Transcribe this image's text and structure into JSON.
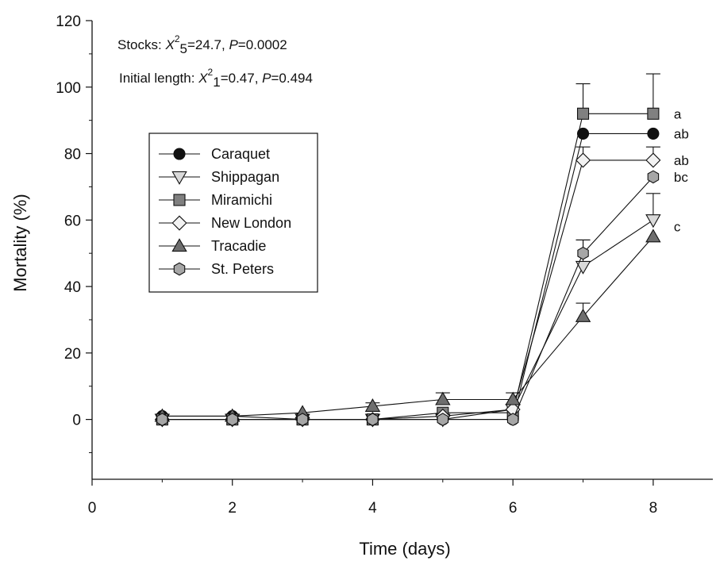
{
  "chart_data": {
    "type": "line",
    "xlabel": "Time (days)",
    "ylabel": "Mortality (%)",
    "xlim": [
      0,
      8.85
    ],
    "ylim": [
      -18,
      120
    ],
    "xticks": [
      0,
      2,
      4,
      6,
      8
    ],
    "yticks": [
      0,
      20,
      40,
      60,
      80,
      100,
      120
    ],
    "x": [
      1,
      2,
      3,
      4,
      5,
      6,
      7,
      8
    ],
    "grid": false,
    "legend_position": "left",
    "annotations": [
      {
        "parts": [
          {
            "t": "Stocks: "
          },
          {
            "t": "X",
            "style": "italic"
          },
          {
            "t": "2",
            "shift": "super"
          },
          {
            "t": "5",
            "shift": "sub"
          },
          {
            "t": "=24.7, "
          },
          {
            "t": "P",
            "style": "italic"
          },
          {
            "t": "=0.0002"
          }
        ]
      },
      {
        "parts": [
          {
            "t": "Initial length: "
          },
          {
            "t": "X",
            "style": "italic"
          },
          {
            "t": "2",
            "shift": "super"
          },
          {
            "t": "1",
            "shift": "sub"
          },
          {
            "t": "=0.47, "
          },
          {
            "t": "P",
            "style": "italic"
          },
          {
            "t": "=0.494"
          }
        ]
      }
    ],
    "significance_labels": [
      {
        "text": "a",
        "x": 8,
        "y": 92
      },
      {
        "text": "ab",
        "x": 8,
        "y": 86
      },
      {
        "text": "ab",
        "x": 8,
        "y": 78
      },
      {
        "text": "bc",
        "x": 8,
        "y": 73
      },
      {
        "text": "c",
        "x": 8,
        "y": 58
      }
    ],
    "series": [
      {
        "name": "Caraquet",
        "marker": "circle",
        "color": "#111111",
        "values": [
          1,
          1,
          0,
          0,
          0,
          0,
          86,
          86
        ],
        "error_up": [
          0,
          0,
          0,
          0,
          0,
          0,
          0,
          0
        ]
      },
      {
        "name": "Shippagan",
        "marker": "triangle-down",
        "color": "#d9d9d9",
        "values": [
          0,
          0,
          0,
          0,
          0,
          3,
          46,
          60
        ],
        "error_up": [
          0,
          0,
          0,
          0,
          0,
          0,
          8,
          8
        ]
      },
      {
        "name": "Miramichi",
        "marker": "square",
        "color": "#808080",
        "values": [
          0,
          0,
          0,
          0,
          2,
          2,
          92,
          92
        ],
        "error_up": [
          0,
          0,
          0,
          0,
          0,
          0,
          9,
          12
        ]
      },
      {
        "name": "New London",
        "marker": "diamond",
        "color": "#f2f2f2",
        "values": [
          0,
          0,
          0,
          0,
          1,
          3,
          78,
          78
        ],
        "error_up": [
          0,
          0,
          0,
          0,
          0,
          0,
          4,
          4
        ]
      },
      {
        "name": "Tracadie",
        "marker": "triangle-up",
        "color": "#6e6e6e",
        "values": [
          1,
          1,
          2,
          4,
          6,
          6,
          31,
          55
        ],
        "error_up": [
          0,
          0,
          0,
          1,
          2,
          2,
          4,
          0
        ]
      },
      {
        "name": "St. Peters",
        "marker": "hexagon",
        "color": "#a6a6a6",
        "values": [
          0,
          0,
          0,
          0,
          0,
          0,
          50,
          73
        ],
        "error_up": [
          0,
          0,
          0,
          0,
          0,
          0,
          4,
          0
        ]
      }
    ]
  }
}
